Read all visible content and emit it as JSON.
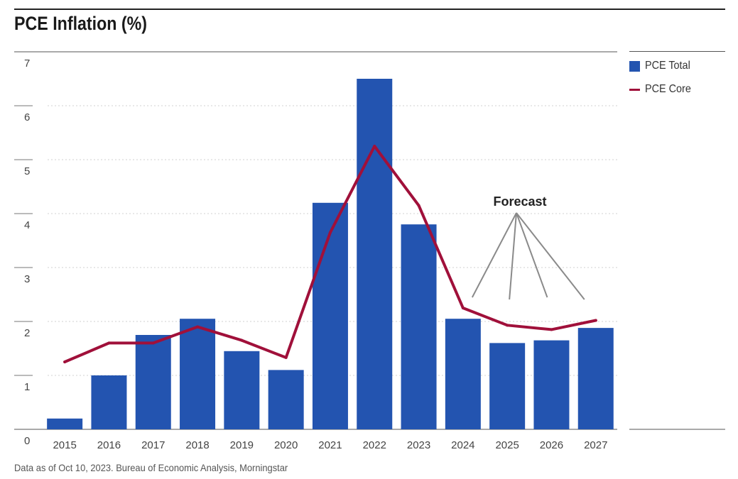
{
  "title": "PCE Inflation (%)",
  "source": "Data as of Oct 10, 2023. Bureau of Economic Analysis, Morningstar",
  "legend": {
    "total_label": "PCE Total",
    "core_label": "PCE Core"
  },
  "annotation": {
    "label": "Forecast"
  },
  "colors": {
    "bar": "#2354b0",
    "line": "#a0103a",
    "grid": "#d0d0d0",
    "arrow": "#8a8a8a"
  },
  "chart_data": {
    "type": "bar",
    "title": "PCE Inflation (%)",
    "xlabel": "",
    "ylabel": "",
    "ylim": [
      0,
      7
    ],
    "yticks": [
      0,
      1,
      2,
      3,
      4,
      5,
      6,
      7
    ],
    "categories": [
      "2015",
      "2016",
      "2017",
      "2018",
      "2019",
      "2020",
      "2021",
      "2022",
      "2023",
      "2024",
      "2025",
      "2026",
      "2027"
    ],
    "series": [
      {
        "name": "PCE Total",
        "type": "bar",
        "values": [
          0.2,
          1.0,
          1.75,
          2.05,
          1.45,
          1.1,
          4.2,
          6.5,
          3.8,
          2.05,
          1.6,
          1.65,
          1.88
        ]
      },
      {
        "name": "PCE Core",
        "type": "line",
        "values": [
          1.25,
          1.6,
          1.6,
          1.9,
          1.65,
          1.33,
          3.65,
          5.25,
          4.15,
          2.25,
          1.93,
          1.85,
          2.02
        ]
      }
    ],
    "forecast_start": "2024",
    "grid": true,
    "legend_position": "right"
  }
}
